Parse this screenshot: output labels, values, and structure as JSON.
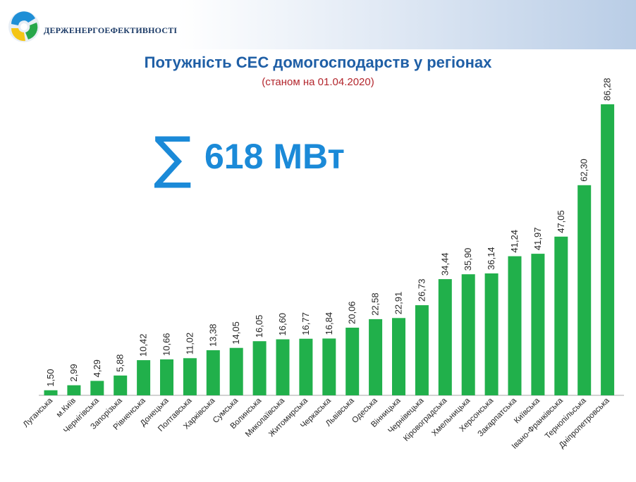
{
  "header": {
    "org_name": "ДЕРЖЕНЕРГОЕФЕКТИВНОСТІ",
    "logo_icon": "agency-logo-icon"
  },
  "title": "Потужність СЕС домогосподарств у регіонах",
  "subtitle": "(станом на 01.04.2020)",
  "summary": {
    "symbol": "∑",
    "value": "618 МВт"
  },
  "colors": {
    "bar": "#21b04b",
    "title": "#1f5fa6",
    "subtitle": "#b3262d",
    "summary": "#1b8ad8",
    "axis": "#a6a6a6"
  },
  "chart_data": {
    "type": "bar",
    "categories": [
      "Луганська",
      "м.Київ",
      "Чернігівська",
      "Запорізька",
      "Рівненська",
      "Донецька",
      "Полтавська",
      "Харківська",
      "Сумська",
      "Волинська",
      "Миколаївська",
      "Житомирська",
      "Черкаська",
      "Львівська",
      "Одеська",
      "Вінницька",
      "Чернівецька",
      "Кіровоградська",
      "Хмельницька",
      "Херсонська",
      "Закарпатська",
      "Київська",
      "Івано-Франківська",
      "Тернопільська",
      "Дніпропетровська"
    ],
    "values": [
      1.5,
      2.99,
      4.29,
      5.88,
      10.42,
      10.66,
      11.02,
      13.38,
      14.05,
      16.05,
      16.6,
      16.77,
      16.84,
      20.06,
      22.58,
      22.91,
      26.73,
      34.44,
      35.9,
      36.14,
      41.24,
      41.97,
      47.05,
      62.3,
      86.28
    ],
    "value_labels": [
      "1,50",
      "2,99",
      "4,29",
      "5,88",
      "10,42",
      "10,66",
      "11,02",
      "13,38",
      "14,05",
      "16,05",
      "16,60",
      "16,77",
      "16,84",
      "20,06",
      "22,58",
      "22,91",
      "26,73",
      "34,44",
      "35,90",
      "36,14",
      "41,24",
      "41,97",
      "47,05",
      "62,30",
      "86,28"
    ],
    "ylim": [
      0,
      86.28
    ],
    "grid": false,
    "legend": "none"
  }
}
